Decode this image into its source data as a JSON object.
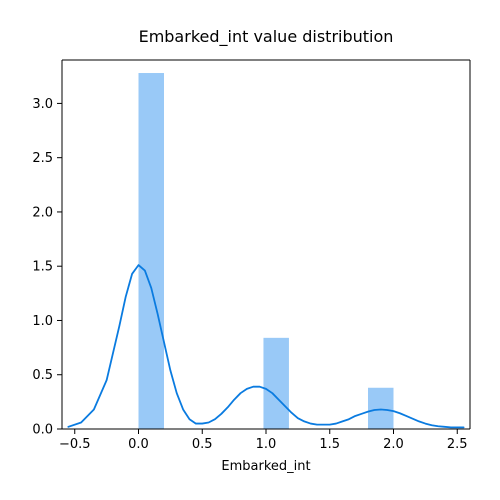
{
  "chart_data": {
    "type": "bar",
    "title": "Embarked_int value distribution",
    "xlabel": "Embarked_int",
    "ylabel": "",
    "xlim": [
      -0.6,
      2.6
    ],
    "ylim": [
      0,
      3.4
    ],
    "xticks": [
      -0.5,
      0.0,
      0.5,
      1.0,
      1.5,
      2.0,
      2.5
    ],
    "xtick_labels": [
      "−0.5",
      "0.0",
      "0.5",
      "1.0",
      "1.5",
      "2.0",
      "2.5"
    ],
    "yticks": [
      0.0,
      0.5,
      1.0,
      1.5,
      2.0,
      2.5,
      3.0
    ],
    "ytick_labels": [
      "0.0",
      "0.5",
      "1.0",
      "1.5",
      "2.0",
      "2.5",
      "3.0"
    ],
    "grid": false,
    "bars": [
      {
        "x0": 0.0,
        "x1": 0.2,
        "height": 3.28
      },
      {
        "x0": 0.2,
        "x1": 0.4,
        "height": 0.0
      },
      {
        "x0": 0.4,
        "x1": 0.6,
        "height": 0.0
      },
      {
        "x0": 0.6,
        "x1": 0.8,
        "height": 0.0
      },
      {
        "x0": 0.8,
        "x1": 1.0,
        "height": 0.0
      },
      {
        "x0": 0.98,
        "x1": 1.18,
        "height": 0.84
      },
      {
        "x0": 1.8,
        "x1": 2.0,
        "height": 0.38
      }
    ],
    "kde": {
      "x": [
        -0.55,
        -0.45,
        -0.35,
        -0.25,
        -0.15,
        -0.1,
        -0.05,
        0.0,
        0.05,
        0.1,
        0.15,
        0.2,
        0.25,
        0.3,
        0.35,
        0.4,
        0.45,
        0.5,
        0.55,
        0.6,
        0.65,
        0.7,
        0.75,
        0.8,
        0.85,
        0.9,
        0.95,
        1.0,
        1.05,
        1.1,
        1.15,
        1.2,
        1.25,
        1.3,
        1.35,
        1.4,
        1.45,
        1.5,
        1.55,
        1.6,
        1.65,
        1.7,
        1.75,
        1.8,
        1.85,
        1.9,
        1.95,
        2.0,
        2.05,
        2.1,
        2.15,
        2.2,
        2.25,
        2.3,
        2.35,
        2.4,
        2.45,
        2.5,
        2.55
      ],
      "y": [
        0.02,
        0.06,
        0.18,
        0.45,
        0.95,
        1.22,
        1.43,
        1.51,
        1.46,
        1.3,
        1.06,
        0.8,
        0.54,
        0.33,
        0.18,
        0.09,
        0.05,
        0.05,
        0.06,
        0.09,
        0.14,
        0.2,
        0.27,
        0.33,
        0.37,
        0.39,
        0.39,
        0.37,
        0.33,
        0.27,
        0.21,
        0.15,
        0.1,
        0.07,
        0.05,
        0.04,
        0.04,
        0.04,
        0.05,
        0.07,
        0.09,
        0.12,
        0.14,
        0.16,
        0.175,
        0.18,
        0.175,
        0.165,
        0.145,
        0.12,
        0.095,
        0.07,
        0.05,
        0.035,
        0.025,
        0.02,
        0.015,
        0.015,
        0.015
      ]
    },
    "colors": {
      "bar_fill": "#99c9f7",
      "kde_line": "#0a7be0",
      "axes": "#000000"
    }
  }
}
